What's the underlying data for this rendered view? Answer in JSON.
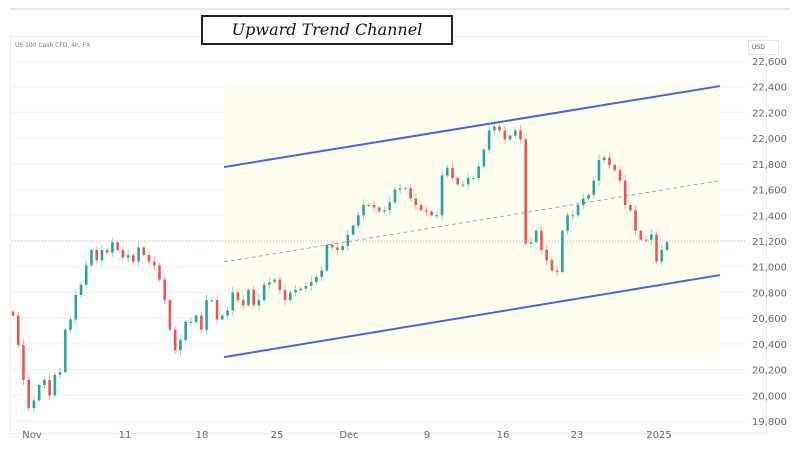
{
  "header": {
    "title": "Upward Trend Channel",
    "symbol": "US 100 Cash CFD, 4h, FX",
    "currency": "USD"
  },
  "chart_data": {
    "type": "candlestick",
    "title": "Upward Trend Channel",
    "xlabel": "",
    "ylabel": "",
    "ylim": [
      19800,
      22600
    ],
    "y_ticks": [
      "22,600",
      "22,400",
      "22,200",
      "22,000",
      "21,800",
      "21,600",
      "21,400",
      "21,200",
      "21,000",
      "20,800",
      "20,600",
      "20,400",
      "20,200",
      "20,000",
      "19,800"
    ],
    "x_ticks": [
      "Nov",
      "11",
      "18",
      "25",
      "Dec",
      "9",
      "16",
      "23",
      "2025"
    ],
    "grid": true,
    "colors": {
      "up": "#26a69a",
      "down": "#ef5350",
      "channel": "#3d66e0",
      "channel_fill": "#fffdf0",
      "price_line": "#f4a6a6"
    },
    "current_price_line": 21200,
    "channel": {
      "upper": [
        21775,
        22405
      ],
      "lower": [
        20297,
        20935
      ],
      "middle": [
        21037,
        21670
      ]
    },
    "closes": [
      20620,
      20390,
      20120,
      19900,
      19960,
      20080,
      20120,
      20000,
      20160,
      20180,
      20510,
      20590,
      20780,
      20860,
      21010,
      21130,
      21050,
      21130,
      21110,
      21190,
      21130,
      21070,
      21090,
      21040,
      21150,
      21090,
      21040,
      21010,
      20900,
      20740,
      20510,
      20350,
      20430,
      20570,
      20570,
      20620,
      20510,
      20740,
      20740,
      20590,
      20620,
      20660,
      20800,
      20740,
      20700,
      20820,
      20700,
      20740,
      20860,
      20880,
      20900,
      20820,
      20740,
      20800,
      20820,
      20830,
      20850,
      20880,
      20920,
      20970,
      21170,
      21150,
      21130,
      21160,
      21250,
      21320,
      21400,
      21480,
      21480,
      21460,
      21430,
      21440,
      21500,
      21600,
      21610,
      21610,
      21530,
      21480,
      21440,
      21430,
      21400,
      21400,
      21710,
      21770,
      21690,
      21640,
      21640,
      21690,
      21690,
      21780,
      21910,
      22060,
      22090,
      22060,
      21990,
      22020,
      22060,
      21990,
      21180,
      21190,
      21280,
      21130,
      21050,
      20970,
      20960,
      21280,
      21400,
      21400,
      21480,
      21530,
      21560,
      21670,
      21830,
      21850,
      21790,
      21750,
      21670,
      21480,
      21440,
      21280,
      21210,
      21210,
      21250,
      21040,
      21130,
      21190
    ]
  }
}
